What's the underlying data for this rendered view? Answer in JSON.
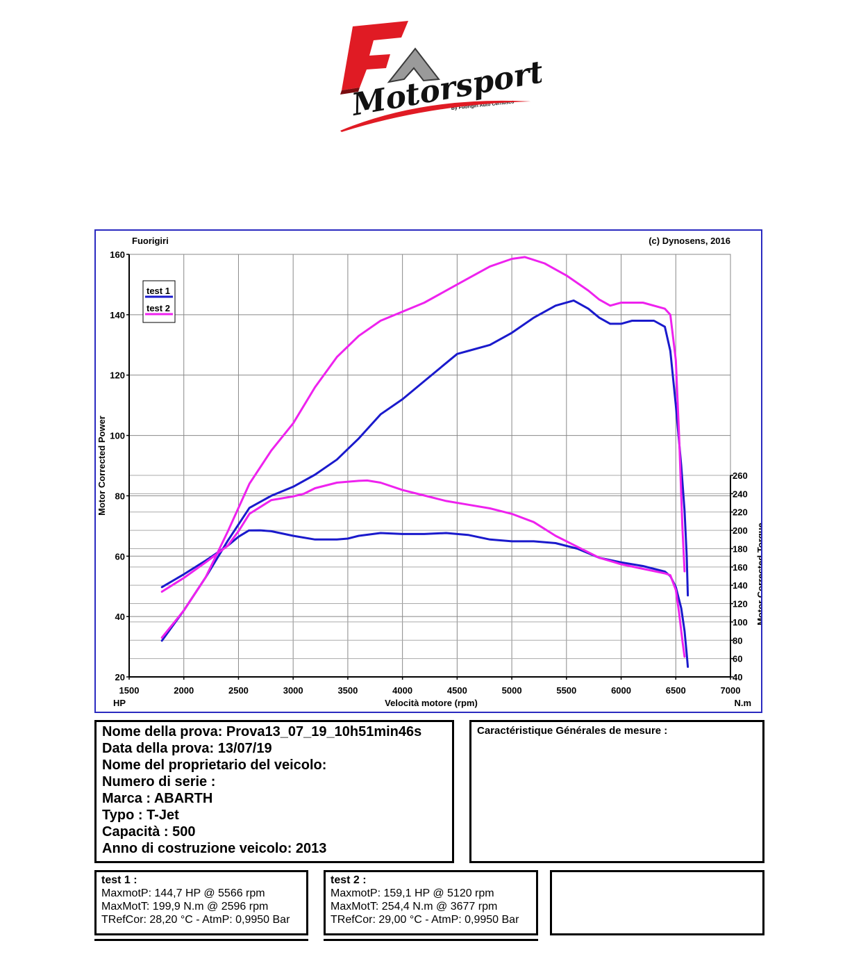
{
  "logo": {
    "brand_text": "Motorsport",
    "sub_text": "By Fuorigiri Auto Cernusco",
    "colors": {
      "red": "#e01b24",
      "silver": "#9a9a9a",
      "dark": "#3a3a3a"
    }
  },
  "chart_header": {
    "left": "Fuorigiri",
    "right": "(c) Dynosens, 2016"
  },
  "chart_data": {
    "type": "line",
    "title": "",
    "xlabel": "Velocità motore (rpm)",
    "ylabel": "Motor Corrected Power",
    "y2label": "Motor Corrected Torque",
    "x_unit": "HP",
    "y2_unit": "N.m",
    "xlim": [
      1500,
      7000
    ],
    "ylim": [
      20,
      160
    ],
    "y2lim": [
      40,
      260
    ],
    "x_ticks": [
      1500,
      2000,
      2500,
      3000,
      3500,
      4000,
      4500,
      5000,
      5500,
      6000,
      6500,
      7000
    ],
    "y_ticks": [
      20,
      40,
      60,
      80,
      100,
      120,
      140,
      160
    ],
    "y2_ticks": [
      40,
      60,
      80,
      100,
      120,
      140,
      160,
      180,
      200,
      220,
      240,
      260
    ],
    "grid": true,
    "legend_position": "top-left",
    "colors": {
      "test1": "#1a1acc",
      "test2": "#ee22ee",
      "frame": "#2a2ac0",
      "grid": "#888888"
    },
    "series": [
      {
        "name": "test 1",
        "axis": "left",
        "quantity": "power",
        "x": [
          1800,
          2000,
          2200,
          2400,
          2600,
          2800,
          3000,
          3200,
          3400,
          3600,
          3800,
          4000,
          4200,
          4400,
          4500,
          4600,
          4800,
          5000,
          5200,
          5400,
          5566,
          5700,
          5800,
          5900,
          6000,
          6100,
          6200,
          6300,
          6400,
          6450,
          6500,
          6550,
          6580,
          6600,
          6610
        ],
        "y": [
          32,
          42,
          53,
          65,
          76,
          80,
          83,
          87,
          92,
          99,
          107,
          112,
          118,
          124,
          127,
          128,
          130,
          134,
          139,
          143,
          144.7,
          142,
          139,
          137,
          137,
          138,
          138,
          138,
          136,
          128,
          110,
          90,
          75,
          60,
          47
        ]
      },
      {
        "name": "test 1",
        "axis": "right",
        "quantity": "torque",
        "x": [
          1800,
          2000,
          2200,
          2400,
          2500,
          2596,
          2700,
          2800,
          3000,
          3200,
          3400,
          3500,
          3600,
          3800,
          4000,
          4200,
          4400,
          4600,
          4800,
          5000,
          5200,
          5400,
          5600,
          5800,
          6000,
          6200,
          6400,
          6450,
          6500,
          6550,
          6580,
          6600,
          6610
        ],
        "y": [
          138,
          152,
          167,
          183,
          193,
          199.9,
          200,
          199,
          194,
          190,
          190,
          191,
          194,
          197,
          196,
          196,
          197,
          195,
          190,
          188,
          188,
          186,
          180,
          170,
          165,
          161,
          155,
          150,
          138,
          115,
          90,
          65,
          51
        ]
      },
      {
        "name": "test 2",
        "axis": "left",
        "quantity": "power",
        "x": [
          1800,
          2000,
          2200,
          2400,
          2600,
          2800,
          3000,
          3200,
          3400,
          3600,
          3800,
          4000,
          4200,
          4400,
          4600,
          4800,
          5000,
          5120,
          5300,
          5500,
          5700,
          5800,
          5900,
          6000,
          6200,
          6400,
          6450,
          6500,
          6530,
          6560,
          6580
        ],
        "y": [
          33,
          42,
          53,
          68,
          84,
          95,
          104,
          116,
          126,
          133,
          138,
          141,
          144,
          148,
          152,
          156,
          158.5,
          159.1,
          157,
          153,
          148,
          145,
          143,
          144,
          144,
          142,
          140,
          125,
          100,
          70,
          55
        ]
      },
      {
        "name": "test 2",
        "axis": "right",
        "quantity": "torque",
        "x": [
          1800,
          2000,
          2200,
          2400,
          2500,
          2600,
          2800,
          3000,
          3100,
          3200,
          3400,
          3600,
          3677,
          3800,
          4000,
          4200,
          4400,
          4600,
          4800,
          5000,
          5200,
          5400,
          5600,
          5800,
          6000,
          6200,
          6400,
          6450,
          6500,
          6530,
          6560,
          6580
        ],
        "y": [
          133,
          148,
          165,
          183,
          199,
          218,
          233,
          237,
          240,
          246,
          252,
          254,
          254.4,
          252,
          244,
          238,
          232,
          228,
          224,
          218,
          209,
          194,
          182,
          170,
          163,
          158,
          153,
          151,
          135,
          110,
          80,
          62
        ]
      }
    ]
  },
  "info": {
    "nome_prova": "Nome della prova: Prova13_07_19_10h51min46s",
    "data_prova": "Data della prova: 13/07/19",
    "proprietario": "Nome del proprietario del veicolo:",
    "numero_serie": "Numero di serie  :",
    "marca": "Marca  : ABARTH",
    "typo": "Typo  : T-Jet",
    "capacita": "Capacità  : 500",
    "anno": "Anno di costruzione veicolo: 2013"
  },
  "measure_box": {
    "title": "Caractéristique Générales de mesure :"
  },
  "test1": {
    "title": "test 1 :",
    "maxpower": "MaxmotP: 144,7 HP @ 5566 rpm",
    "maxtorque": "MaxMotT: 199,9 N.m @ 2596 rpm",
    "conditions": "TRefCor: 28,20 °C - AtmP: 0,9950 Bar"
  },
  "test2": {
    "title": "test 2 :",
    "maxpower": "MaxmotP: 159,1 HP @ 5120 rpm",
    "maxtorque": "MaxMotT: 254,4 N.m @ 3677 rpm",
    "conditions": "TRefCor: 29,00 °C - AtmP: 0,9950 Bar"
  }
}
